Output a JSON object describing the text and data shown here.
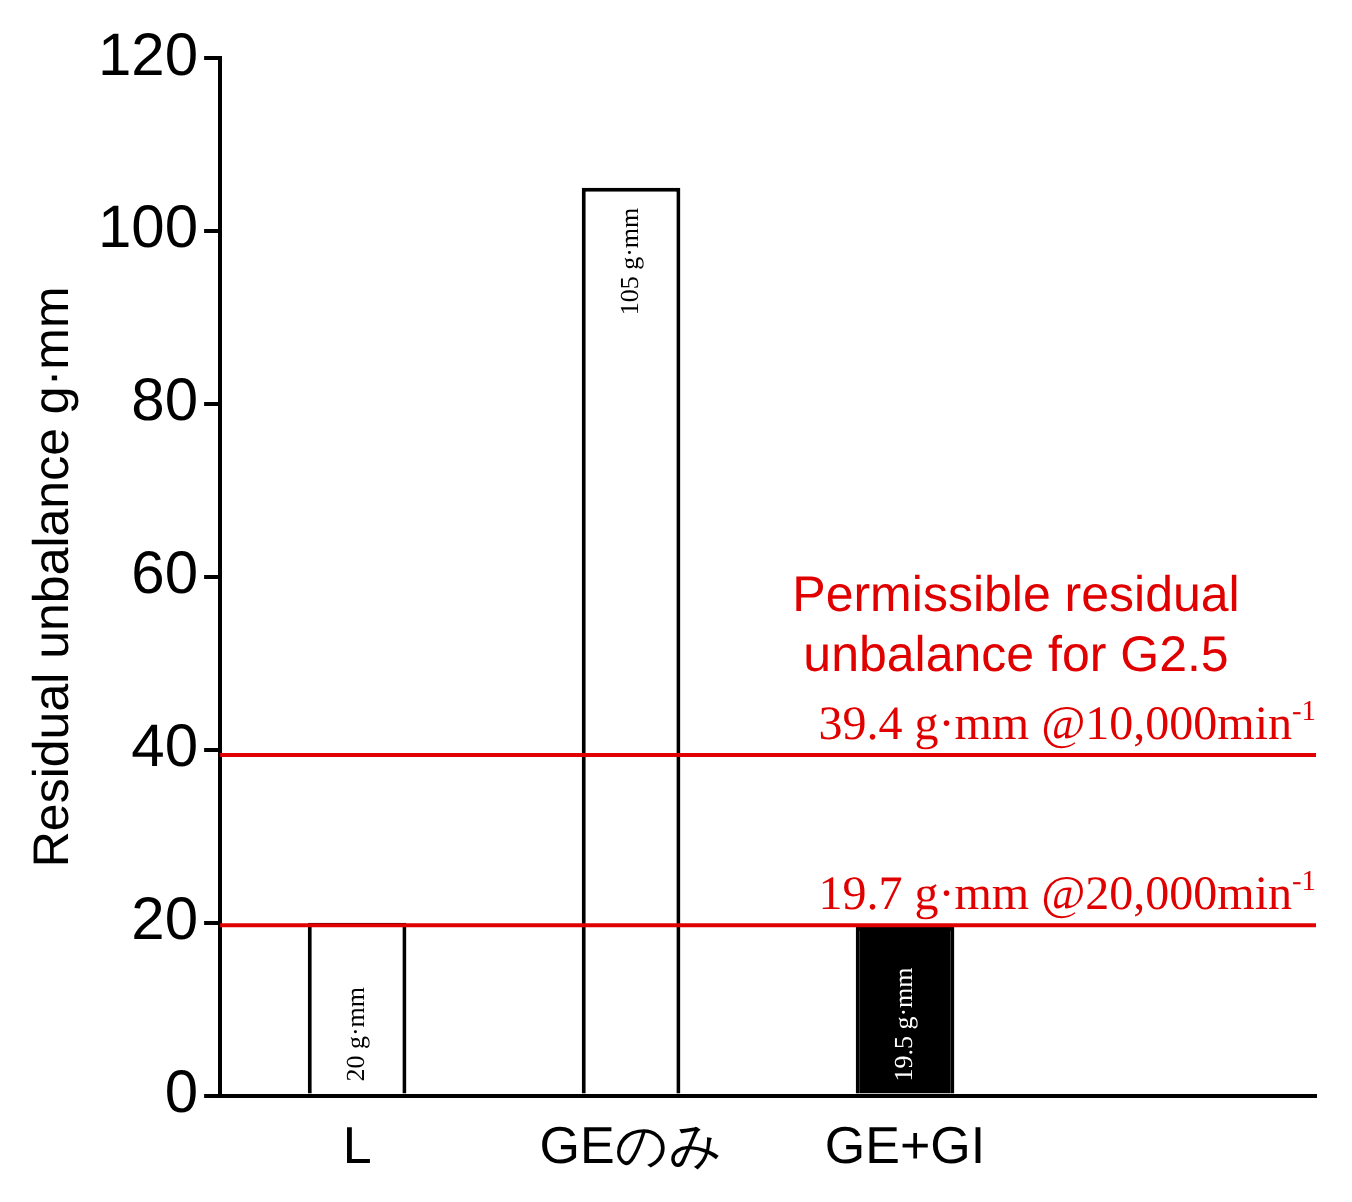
{
  "chart_data": {
    "type": "bar",
    "ylabel": "Residual unbalance g·mm",
    "categories": [
      "L",
      "GEのみ",
      "GE+GI",
      null
    ],
    "values": [
      20,
      105,
      19.5,
      null
    ],
    "colors": [
      "#ffffff",
      "#ffffff",
      "#000000",
      "#ffffff"
    ],
    "value_labels": [
      "20 g·mm",
      "105 g·mm",
      "19.5 g·mm",
      null
    ],
    "ylim": [
      0,
      120
    ],
    "yticks": [
      0,
      20,
      40,
      60,
      80,
      100,
      120
    ],
    "ref_lines": [
      {
        "axis": "y",
        "value": 39.4,
        "label": "39.4 g·mm @10,000min$^{-1}$",
        "color": "#e00000"
      },
      {
        "axis": "y",
        "value": 19.7,
        "label": "19.7 g·mm @20,000min$^{-1}$",
        "color": "#e00000"
      }
    ],
    "annotations": [
      "Permissible residual unbalance for G2.5"
    ]
  }
}
